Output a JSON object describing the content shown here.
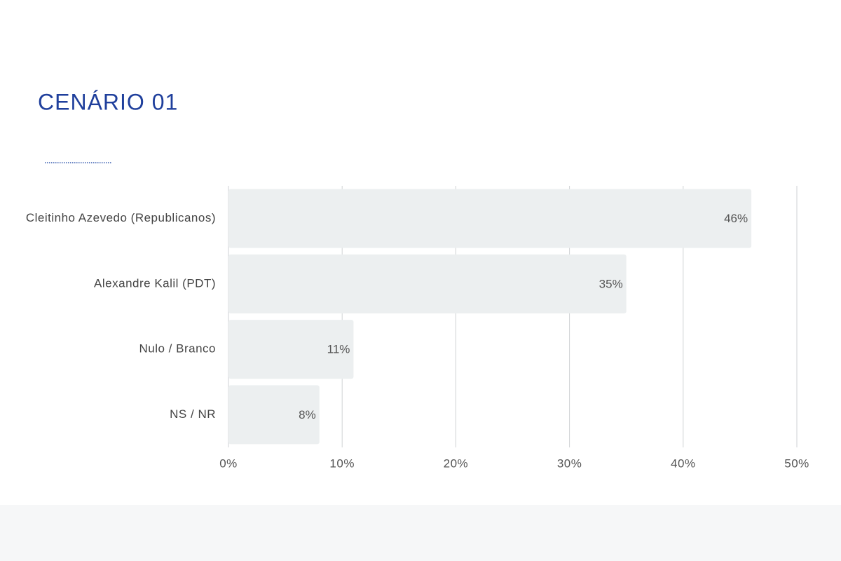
{
  "chart_data": {
    "type": "hbar",
    "title": "CENÁRIO 01",
    "categories": [
      "Cleitinho Azevedo (Republicanos)",
      "Alexandre Kalil (PDT)",
      "Nulo / Branco",
      "NS / NR"
    ],
    "values": [
      46,
      35,
      11,
      8
    ],
    "value_labels": [
      "46%",
      "35%",
      "11%",
      "8%"
    ],
    "color": "#eceff0",
    "xlim": [
      0,
      50
    ],
    "xticks": [
      {
        "value": 0,
        "label": "0%"
      },
      {
        "value": 10,
        "label": "10%"
      },
      {
        "value": 20,
        "label": "20%"
      },
      {
        "value": 30,
        "label": "30%"
      },
      {
        "value": 40,
        "label": "40%"
      },
      {
        "value": 50,
        "label": "50%"
      }
    ],
    "grid": true
  }
}
